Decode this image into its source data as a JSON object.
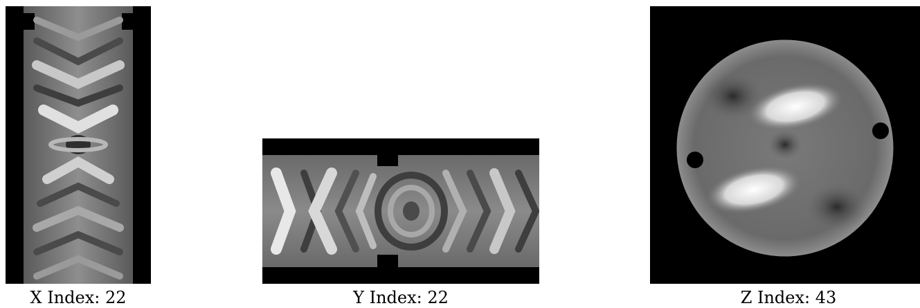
{
  "panels": [
    {
      "caption": "X Index: 22"
    },
    {
      "caption": "Y Index: 22"
    },
    {
      "caption": "Z Index: 43"
    }
  ],
  "colors": {
    "background": "#ffffff",
    "slice_background": "#000000",
    "slice_tissue": "#7a7a7a"
  }
}
